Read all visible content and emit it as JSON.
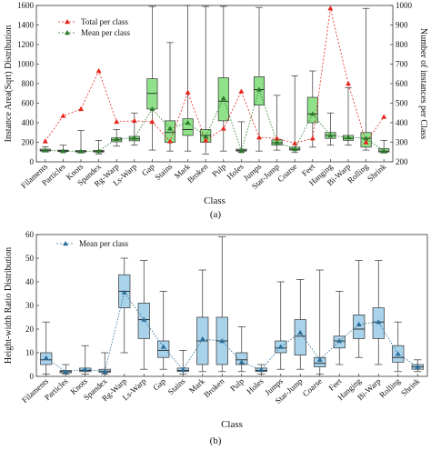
{
  "chart_data": [
    {
      "type": "box",
      "panel_label": "(a)",
      "xlabel": "Class",
      "ylabel": "Instance Area(Sqrt) Distribution",
      "ylabel_right": "Number of instances per Class",
      "ylim": [
        0,
        1600
      ],
      "yticks": [
        0,
        200,
        400,
        600,
        800,
        1000,
        1200,
        1400,
        1600
      ],
      "ylim_right": [
        200,
        1000
      ],
      "yticks_right": [
        200,
        300,
        400,
        500,
        600,
        700,
        800,
        900,
        1000
      ],
      "legend": {
        "position": "top-left",
        "entries": [
          "Total per class",
          "Mean per class"
        ]
      },
      "box_color": "#8fe28a",
      "total_color": "#e8231b",
      "mean_color": "#2b7a2b",
      "categories": [
        "Filaments",
        "Particles",
        "Knots",
        "Spandex",
        "Rg-Warp",
        "Ls-Warp",
        "Gap",
        "Stains",
        "Mark",
        "Broken",
        "Pulp",
        "Holes",
        "Jumps",
        "Star-Jump",
        "Coarse",
        "Feet",
        "Hanging",
        "Bi-Warp",
        "Rolling",
        "Shrink"
      ],
      "boxes": [
        {
          "min": 100,
          "q1": 110,
          "median": 118,
          "q3": 130,
          "max": 155
        },
        {
          "min": 95,
          "q1": 105,
          "median": 112,
          "q3": 120,
          "max": 170
        },
        {
          "min": 90,
          "q1": 100,
          "median": 108,
          "q3": 116,
          "max": 320
        },
        {
          "min": 80,
          "q1": 100,
          "median": 108,
          "q3": 118,
          "max": 220
        },
        {
          "min": 160,
          "q1": 205,
          "median": 225,
          "q3": 245,
          "max": 330
        },
        {
          "min": 170,
          "q1": 215,
          "median": 235,
          "q3": 260,
          "max": 500
        },
        {
          "min": 120,
          "q1": 540,
          "median": 700,
          "q3": 850,
          "max": 1590
        },
        {
          "min": 110,
          "q1": 200,
          "median": 300,
          "q3": 420,
          "max": 1220
        },
        {
          "min": 110,
          "q1": 270,
          "median": 330,
          "q3": 440,
          "max": 1600
        },
        {
          "min": 80,
          "q1": 200,
          "median": 270,
          "q3": 330,
          "max": 1590
        },
        {
          "min": 110,
          "q1": 420,
          "median": 620,
          "q3": 860,
          "max": 1590
        },
        {
          "min": 100,
          "q1": 110,
          "median": 118,
          "q3": 130,
          "max": 410
        },
        {
          "min": 110,
          "q1": 580,
          "median": 740,
          "q3": 870,
          "max": 1580
        },
        {
          "min": 120,
          "q1": 170,
          "median": 195,
          "q3": 225,
          "max": 680
        },
        {
          "min": 95,
          "q1": 120,
          "median": 130,
          "q3": 150,
          "max": 880
        },
        {
          "min": 150,
          "q1": 400,
          "median": 490,
          "q3": 660,
          "max": 930
        },
        {
          "min": 170,
          "q1": 240,
          "median": 270,
          "q3": 300,
          "max": 500
        },
        {
          "min": 170,
          "q1": 220,
          "median": 240,
          "q3": 270,
          "max": 760
        },
        {
          "min": 120,
          "q1": 150,
          "median": 240,
          "q3": 300,
          "max": 1570
        },
        {
          "min": 90,
          "q1": 100,
          "median": 110,
          "q3": 135,
          "max": 220
        }
      ],
      "series": [
        {
          "name": "Total per class",
          "axis": "right",
          "values": [
            305,
            435,
            470,
            665,
            405,
            410,
            405,
            305,
            555,
            310,
            370,
            560,
            325,
            320,
            295,
            320,
            985,
            600,
            300,
            430
          ]
        },
        {
          "name": "Mean per class",
          "axis": "left",
          "values": [
            118,
            110,
            108,
            110,
            235,
            245,
            540,
            340,
            400,
            260,
            650,
            110,
            740,
            200,
            130,
            490,
            270,
            250,
            240,
            110
          ]
        }
      ]
    },
    {
      "type": "box",
      "panel_label": "(b)",
      "xlabel": "Class",
      "ylabel": "Height-width Ratio Distribution",
      "ylim": [
        0,
        60
      ],
      "yticks": [
        0,
        10,
        20,
        30,
        40,
        50,
        60
      ],
      "legend": {
        "position": "top-left",
        "entries": [
          "Mean per class"
        ]
      },
      "box_color": "#a9d3ea",
      "mean_color": "#2d6e99",
      "categories": [
        "Filaments",
        "Particles",
        "Knots",
        "Spandex",
        "Rg-Warp",
        "Ls-Warp",
        "Gap",
        "Stains",
        "Mark",
        "Broken",
        "Pulp",
        "Holes",
        "Jumps",
        "Star-Jump",
        "Coarse",
        "Feet",
        "Hanging",
        "Bi-Warp",
        "Rolling",
        "Shrink"
      ],
      "boxes": [
        {
          "min": 1,
          "q1": 5,
          "median": 7,
          "q3": 10,
          "max": 23
        },
        {
          "min": 1,
          "q1": 1.5,
          "median": 2,
          "q3": 2.5,
          "max": 5
        },
        {
          "min": 1,
          "q1": 2,
          "median": 2.5,
          "q3": 3.5,
          "max": 13
        },
        {
          "min": 1,
          "q1": 1.7,
          "median": 2.2,
          "q3": 3,
          "max": 10
        },
        {
          "min": 10,
          "q1": 29,
          "median": 36,
          "q3": 43,
          "max": 50
        },
        {
          "min": 3,
          "q1": 16,
          "median": 24,
          "q3": 31,
          "max": 49
        },
        {
          "min": 3,
          "q1": 8,
          "median": 11,
          "q3": 15,
          "max": 36
        },
        {
          "min": 1,
          "q1": 2,
          "median": 2.5,
          "q3": 3.5,
          "max": 11
        },
        {
          "min": 2,
          "q1": 5,
          "median": 15,
          "q3": 25,
          "max": 45
        },
        {
          "min": 2,
          "q1": 5,
          "median": 15,
          "q3": 25,
          "max": 59
        },
        {
          "min": 2,
          "q1": 5,
          "median": 7,
          "q3": 10,
          "max": 21
        },
        {
          "min": 1,
          "q1": 2,
          "median": 2.5,
          "q3": 3.5,
          "max": 5
        },
        {
          "min": 3,
          "q1": 10,
          "median": 12,
          "q3": 15,
          "max": 40
        },
        {
          "min": 3,
          "q1": 9,
          "median": 17,
          "q3": 24,
          "max": 41
        },
        {
          "min": 1,
          "q1": 4,
          "median": 5.5,
          "q3": 8,
          "max": 45
        },
        {
          "min": 5,
          "q1": 12,
          "median": 15,
          "q3": 17,
          "max": 36
        },
        {
          "min": 8,
          "q1": 16,
          "median": 20,
          "q3": 26,
          "max": 49
        },
        {
          "min": 5,
          "q1": 16,
          "median": 23,
          "q3": 29,
          "max": 49
        },
        {
          "min": 2,
          "q1": 6,
          "median": 8,
          "q3": 13,
          "max": 23
        },
        {
          "min": 2,
          "q1": 3,
          "median": 4,
          "q3": 5,
          "max": 7
        }
      ],
      "series": [
        {
          "name": "Mean per class",
          "values": [
            7.8,
            2,
            3,
            2,
            35.5,
            24,
            12.5,
            2.8,
            15.8,
            15,
            6,
            2.8,
            12.5,
            18.5,
            7,
            15,
            22,
            23,
            9.5,
            4
          ]
        }
      ]
    }
  ]
}
